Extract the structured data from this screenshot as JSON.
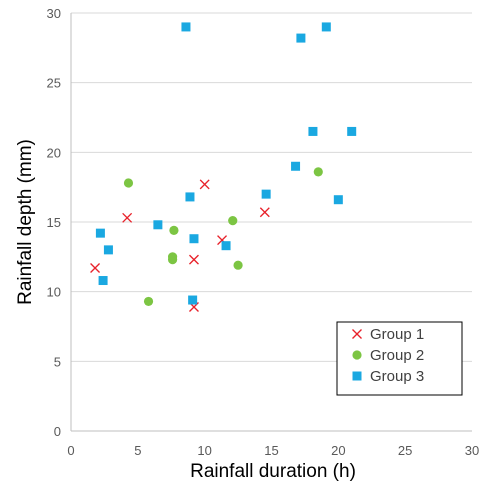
{
  "chart_data": {
    "type": "scatter",
    "title": "",
    "xlabel": "Rainfall duration (h)",
    "ylabel": "Rainfall depth (mm)",
    "xlim": [
      0,
      30
    ],
    "ylim": [
      0,
      30
    ],
    "xticks": [
      0,
      5,
      10,
      15,
      20,
      25,
      30
    ],
    "yticks": [
      0,
      5,
      10,
      15,
      20,
      25,
      30
    ],
    "grid": "horizontal",
    "legend": "bottom-right",
    "series": [
      {
        "name": "Group 1",
        "marker": "x",
        "color": "#e8212a",
        "points": [
          [
            1.8,
            11.7
          ],
          [
            4.2,
            15.3
          ],
          [
            9.2,
            8.9
          ],
          [
            9.2,
            12.3
          ],
          [
            10.0,
            17.7
          ],
          [
            11.3,
            13.7
          ],
          [
            14.5,
            15.7
          ]
        ]
      },
      {
        "name": "Group 2",
        "marker": "circle",
        "color": "#7cc543",
        "points": [
          [
            4.3,
            17.8
          ],
          [
            5.8,
            9.3
          ],
          [
            7.6,
            12.3
          ],
          [
            7.6,
            12.5
          ],
          [
            7.7,
            14.4
          ],
          [
            12.1,
            15.1
          ],
          [
            12.5,
            11.9
          ],
          [
            18.5,
            18.6
          ]
        ]
      },
      {
        "name": "Group 3",
        "marker": "square",
        "color": "#1aa8e1",
        "points": [
          [
            2.2,
            14.2
          ],
          [
            2.4,
            10.8
          ],
          [
            2.8,
            13.0
          ],
          [
            6.5,
            14.8
          ],
          [
            8.6,
            29.0
          ],
          [
            8.9,
            16.8
          ],
          [
            9.1,
            9.4
          ],
          [
            9.2,
            13.8
          ],
          [
            11.6,
            13.3
          ],
          [
            14.6,
            17.0
          ],
          [
            16.8,
            19.0
          ],
          [
            17.2,
            28.2
          ],
          [
            18.1,
            21.5
          ],
          [
            19.1,
            29.0
          ],
          [
            20.0,
            16.6
          ],
          [
            21.0,
            21.5
          ]
        ]
      }
    ]
  }
}
